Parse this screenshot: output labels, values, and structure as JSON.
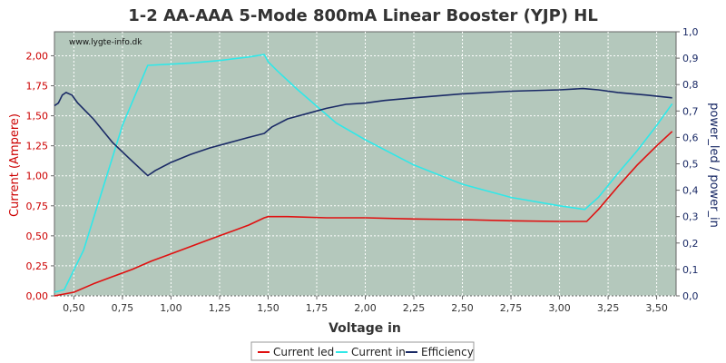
{
  "chart_data": {
    "type": "line",
    "title": "1-2 AA-AAA 5-Mode 800mA Linear Booster (YJP) HL",
    "watermark": "www.lygte-info.dk",
    "xlabel": "Voltage in",
    "ylabel_left": "Current (Ampere)",
    "ylabel_right": "power_led / power_in",
    "xlim": [
      0.4,
      3.6
    ],
    "ylim_left": [
      0,
      2.2
    ],
    "ylim_right": [
      0,
      1.0
    ],
    "x_ticks": [
      "0,50",
      "0,75",
      "1,00",
      "1,25",
      "1,50",
      "1,75",
      "2,00",
      "2,25",
      "2,50",
      "2,75",
      "3,00",
      "3,25",
      "3,50"
    ],
    "y_left_ticks": [
      "0,00",
      "0,25",
      "0,50",
      "0,75",
      "1,00",
      "1,25",
      "1,50",
      "1,75",
      "2,00"
    ],
    "y_right_ticks": [
      "0,0",
      "0,1",
      "0,2",
      "0,3",
      "0,4",
      "0,5",
      "0,6",
      "0,7",
      "0,8",
      "0,9",
      "1,0"
    ],
    "grid": true,
    "legend_position": "bottom",
    "colors": {
      "plot_bg": "#b4c8bc",
      "grid": "#ffffff",
      "current_led": "#e01010",
      "current_in": "#30e8e8",
      "efficiency": "#1a2a66"
    },
    "series": [
      {
        "name": "Current led",
        "axis": "left",
        "color": "#e01010",
        "points": [
          [
            0.4,
            0.0
          ],
          [
            0.5,
            0.03
          ],
          [
            0.6,
            0.1
          ],
          [
            0.7,
            0.16
          ],
          [
            0.8,
            0.22
          ],
          [
            0.9,
            0.29
          ],
          [
            1.0,
            0.35
          ],
          [
            1.1,
            0.41
          ],
          [
            1.2,
            0.47
          ],
          [
            1.3,
            0.53
          ],
          [
            1.4,
            0.59
          ],
          [
            1.48,
            0.65
          ],
          [
            1.5,
            0.66
          ],
          [
            1.6,
            0.66
          ],
          [
            1.8,
            0.65
          ],
          [
            2.0,
            0.65
          ],
          [
            2.25,
            0.64
          ],
          [
            2.5,
            0.635
          ],
          [
            2.75,
            0.625
          ],
          [
            3.0,
            0.62
          ],
          [
            3.1,
            0.62
          ],
          [
            3.14,
            0.62
          ],
          [
            3.2,
            0.72
          ],
          [
            3.3,
            0.91
          ],
          [
            3.4,
            1.09
          ],
          [
            3.5,
            1.25
          ],
          [
            3.58,
            1.37
          ]
        ]
      },
      {
        "name": "Current in",
        "axis": "left",
        "color": "#30e8e8",
        "points": [
          [
            0.4,
            0.03
          ],
          [
            0.45,
            0.05
          ],
          [
            0.55,
            0.38
          ],
          [
            0.65,
            0.9
          ],
          [
            0.75,
            1.42
          ],
          [
            0.88,
            1.92
          ],
          [
            1.0,
            1.93
          ],
          [
            1.1,
            1.94
          ],
          [
            1.25,
            1.96
          ],
          [
            1.4,
            1.99
          ],
          [
            1.48,
            2.01
          ],
          [
            1.5,
            1.95
          ],
          [
            1.55,
            1.87
          ],
          [
            1.65,
            1.72
          ],
          [
            1.75,
            1.58
          ],
          [
            1.85,
            1.44
          ],
          [
            2.0,
            1.3
          ],
          [
            2.25,
            1.09
          ],
          [
            2.5,
            0.93
          ],
          [
            2.75,
            0.82
          ],
          [
            3.0,
            0.75
          ],
          [
            3.13,
            0.72
          ],
          [
            3.2,
            0.82
          ],
          [
            3.3,
            1.02
          ],
          [
            3.4,
            1.21
          ],
          [
            3.5,
            1.42
          ],
          [
            3.58,
            1.6
          ]
        ]
      },
      {
        "name": "Efficiency",
        "axis": "right",
        "color": "#1a2a66",
        "points": [
          [
            0.4,
            0.72
          ],
          [
            0.42,
            0.73
          ],
          [
            0.44,
            0.76
          ],
          [
            0.46,
            0.77
          ],
          [
            0.49,
            0.76
          ],
          [
            0.52,
            0.73
          ],
          [
            0.6,
            0.67
          ],
          [
            0.7,
            0.58
          ],
          [
            0.8,
            0.51
          ],
          [
            0.88,
            0.455
          ],
          [
            0.92,
            0.475
          ],
          [
            1.0,
            0.505
          ],
          [
            1.1,
            0.535
          ],
          [
            1.2,
            0.56
          ],
          [
            1.3,
            0.58
          ],
          [
            1.4,
            0.6
          ],
          [
            1.48,
            0.615
          ],
          [
            1.52,
            0.64
          ],
          [
            1.6,
            0.67
          ],
          [
            1.7,
            0.69
          ],
          [
            1.8,
            0.71
          ],
          [
            1.9,
            0.725
          ],
          [
            2.0,
            0.73
          ],
          [
            2.1,
            0.74
          ],
          [
            2.25,
            0.75
          ],
          [
            2.5,
            0.765
          ],
          [
            2.75,
            0.775
          ],
          [
            3.0,
            0.78
          ],
          [
            3.12,
            0.785
          ],
          [
            3.2,
            0.78
          ],
          [
            3.3,
            0.77
          ],
          [
            3.45,
            0.76
          ],
          [
            3.58,
            0.75
          ]
        ]
      }
    ]
  }
}
